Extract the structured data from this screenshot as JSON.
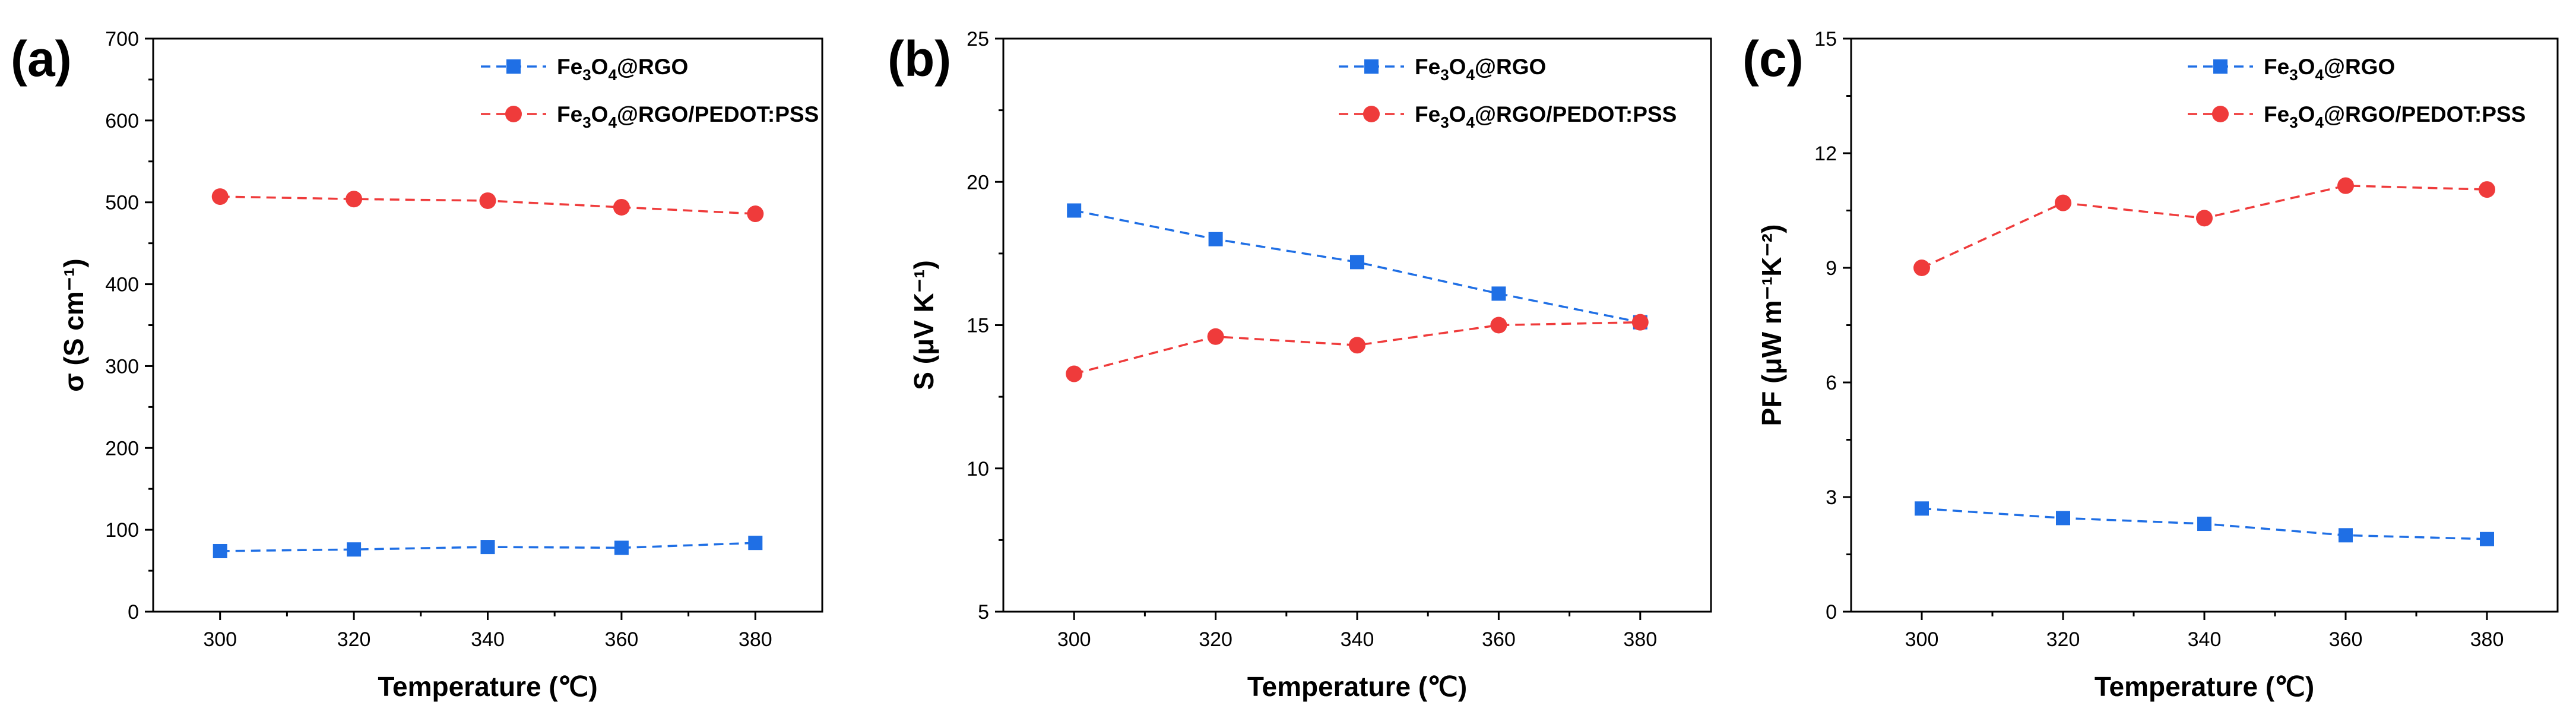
{
  "chart_data": [
    {
      "panel_label": "(a)",
      "type": "line",
      "x": [
        300,
        320,
        340,
        360,
        380
      ],
      "xlim": [
        290,
        390
      ],
      "xticks": [
        300,
        320,
        340,
        360,
        380
      ],
      "xlabel": "Temperature (℃)",
      "ylabel": "σ (S cm⁻¹)",
      "ylim": [
        0,
        700
      ],
      "yticks": [
        0,
        100,
        200,
        300,
        400,
        500,
        600,
        700
      ],
      "series": [
        {
          "name": "Fe3O4@RGO",
          "legend_parts": [
            "Fe",
            "3",
            "O",
            "4",
            "@RGO"
          ],
          "color": "#1f6fe5",
          "marker": "square",
          "values": [
            74,
            76,
            79,
            78,
            84
          ]
        },
        {
          "name": "Fe3O4@RGO/PEDOT:PSS",
          "legend_parts": [
            "Fe",
            "3",
            "O",
            "4",
            "@RGO/PEDOT:PSS"
          ],
          "color": "#ef3b3b",
          "marker": "circle",
          "values": [
            507,
            504,
            502,
            494,
            486
          ]
        }
      ]
    },
    {
      "panel_label": "(b)",
      "type": "line",
      "x": [
        300,
        320,
        340,
        360,
        380
      ],
      "xlim": [
        290,
        390
      ],
      "xticks": [
        300,
        320,
        340,
        360,
        380
      ],
      "xlabel": "Temperature (℃)",
      "ylabel": "S (μV K⁻¹)",
      "ylim": [
        5,
        25
      ],
      "yticks": [
        5,
        10,
        15,
        20,
        25
      ],
      "series": [
        {
          "name": "Fe3O4@RGO",
          "legend_parts": [
            "Fe",
            "3",
            "O",
            "4",
            "@RGO"
          ],
          "color": "#1f6fe5",
          "marker": "square",
          "values": [
            19.0,
            18.0,
            17.2,
            16.1,
            15.1
          ]
        },
        {
          "name": "Fe3O4@RGO/PEDOT:PSS",
          "legend_parts": [
            "Fe",
            "3",
            "O",
            "4",
            "@RGO/PEDOT:PSS"
          ],
          "color": "#ef3b3b",
          "marker": "circle",
          "values": [
            13.3,
            14.6,
            14.3,
            15.0,
            15.1
          ]
        }
      ]
    },
    {
      "panel_label": "(c)",
      "type": "line",
      "x": [
        300,
        320,
        340,
        360,
        380
      ],
      "xlim": [
        290,
        390
      ],
      "xticks": [
        300,
        320,
        340,
        360,
        380
      ],
      "xlabel": "Temperature (℃)",
      "ylabel": "PF (μW m⁻¹K⁻²)",
      "ylim": [
        0,
        15
      ],
      "yticks": [
        0,
        3,
        6,
        9,
        12,
        15
      ],
      "series": [
        {
          "name": "Fe3O4@RGO",
          "legend_parts": [
            "Fe",
            "3",
            "O",
            "4",
            "@RGO"
          ],
          "color": "#1f6fe5",
          "marker": "square",
          "values": [
            2.7,
            2.45,
            2.3,
            2.0,
            1.9
          ]
        },
        {
          "name": "Fe3O4@RGO/PEDOT:PSS",
          "legend_parts": [
            "Fe",
            "3",
            "O",
            "4",
            "@RGO/PEDOT:PSS"
          ],
          "color": "#ef3b3b",
          "marker": "circle",
          "values": [
            9.0,
            10.7,
            10.3,
            11.15,
            11.05
          ]
        }
      ]
    }
  ]
}
